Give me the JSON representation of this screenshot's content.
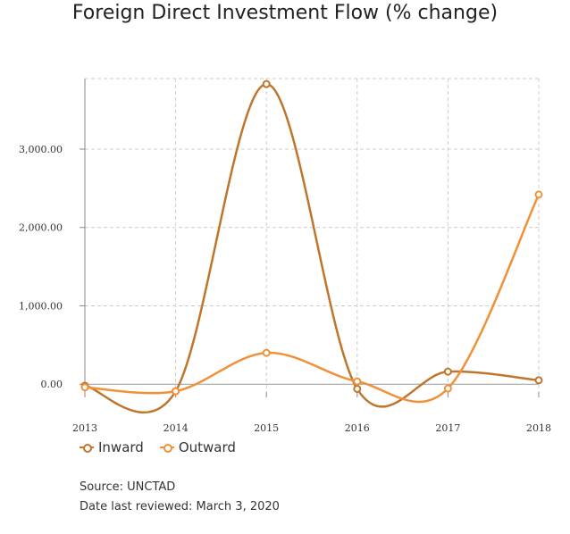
{
  "chart_data": {
    "type": "line",
    "title": "Foreign Direct Investment Flow (% change)",
    "xlabel": "",
    "ylabel": "",
    "categories": [
      "2013",
      "2014",
      "2015",
      "2016",
      "2017",
      "2018"
    ],
    "ylim": [
      -100,
      3900
    ],
    "yticks": [
      0,
      1000,
      2000,
      3000
    ],
    "ytick_labels": [
      "0.00",
      "1,000.00",
      "2,000.00",
      "3,000.00"
    ],
    "grid": true,
    "legend_position": "bottom-left",
    "series": [
      {
        "name": "Inward",
        "color": "#c0752d",
        "values": [
          -20,
          -90,
          3830,
          -60,
          160,
          50
        ]
      },
      {
        "name": "Outward",
        "color": "#f0913a",
        "values": [
          -40,
          -90,
          400,
          35,
          -55,
          2420
        ]
      }
    ]
  },
  "footnotes": {
    "source": "Source: UNCTAD",
    "reviewed": "Date last reviewed: March 3, 2020"
  }
}
